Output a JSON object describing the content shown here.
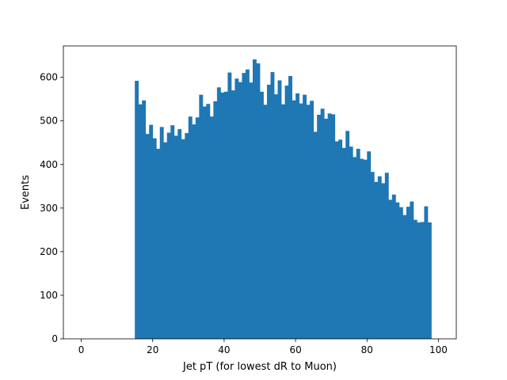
{
  "chart_data": {
    "type": "bar",
    "title": "",
    "xlabel": "Jet pT (for lowest dR to Muon)",
    "ylabel": "Events",
    "xlim": [
      -5,
      105
    ],
    "ylim": [
      0,
      672
    ],
    "xticks": [
      0,
      20,
      40,
      60,
      80,
      100
    ],
    "yticks": [
      0,
      100,
      200,
      300,
      400,
      500,
      600
    ],
    "bin_width": 1,
    "bin_start": 15,
    "bar_color": "#1f77b4",
    "values": [
      592,
      538,
      547,
      470,
      491,
      460,
      436,
      486,
      451,
      473,
      490,
      466,
      481,
      458,
      472,
      510,
      492,
      508,
      560,
      533,
      539,
      510,
      545,
      577,
      565,
      567,
      611,
      570,
      597,
      589,
      610,
      618,
      588,
      641,
      632,
      567,
      537,
      583,
      612,
      561,
      593,
      538,
      581,
      603,
      547,
      563,
      540,
      560,
      537,
      546,
      475,
      514,
      528,
      505,
      517,
      515,
      453,
      457,
      438,
      477,
      441,
      417,
      436,
      413,
      411,
      430,
      383,
      360,
      373,
      357,
      381,
      319,
      331,
      313,
      302,
      284,
      303,
      315,
      273,
      267,
      268,
      304,
      267
    ]
  }
}
